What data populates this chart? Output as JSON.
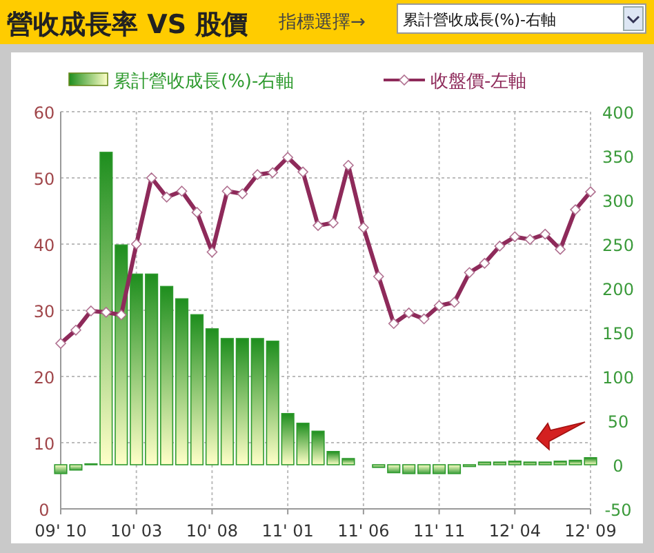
{
  "chart_data": {
    "type": "bar",
    "title": "營收成長率 VS 股價",
    "annotations": [
      "指標選擇→",
      "累計營收成長(%)-右軸"
    ],
    "categories": [
      "09' 10",
      null,
      null,
      null,
      null,
      "10' 03",
      null,
      null,
      null,
      null,
      "10' 08",
      null,
      null,
      null,
      null,
      "11' 01",
      null,
      null,
      null,
      null,
      "11' 06",
      null,
      null,
      null,
      null,
      "11' 11",
      null,
      null,
      null,
      null,
      "12' 04",
      null,
      null,
      null,
      null,
      "12' 09"
    ],
    "series": [
      {
        "name": "累計營收成長(%)-右軸",
        "axis": "y2",
        "color": "#2e9a2e",
        "values": [
          -10,
          -6,
          1,
          354,
          249,
          216,
          216,
          202,
          188,
          170,
          154,
          143,
          143,
          143,
          140,
          58,
          47,
          38,
          15,
          7,
          null,
          -3,
          -9,
          -10,
          -10,
          -10,
          -10,
          -2,
          3,
          3,
          4,
          3,
          3,
          4,
          5,
          8
        ]
      },
      {
        "name": "收盤價-左軸",
        "type": "line",
        "axis": "y",
        "color": "#8e2a5a",
        "marker": "diamond",
        "values": [
          25,
          27,
          29.9,
          29.7,
          29.3,
          40,
          50,
          47.1,
          48,
          44.8,
          38.8,
          48,
          47.6,
          50.5,
          50.8,
          53.1,
          50.9,
          42.8,
          43.2,
          51.9,
          42.5,
          35.1,
          28,
          29.6,
          28.7,
          30.7,
          31.2,
          35.7,
          37.1,
          39.7,
          41.1,
          40.7,
          41.5,
          39.2,
          45.2,
          47.9
        ]
      }
    ],
    "ylim": [
      0,
      60
    ],
    "yticks": [
      0,
      10,
      20,
      30,
      40,
      50,
      60
    ],
    "y2lim": [
      -50,
      400
    ],
    "y2ticks": [
      -50,
      0,
      50,
      100,
      150,
      200,
      250,
      300,
      350,
      400
    ],
    "grid": true,
    "legend": "top"
  }
}
